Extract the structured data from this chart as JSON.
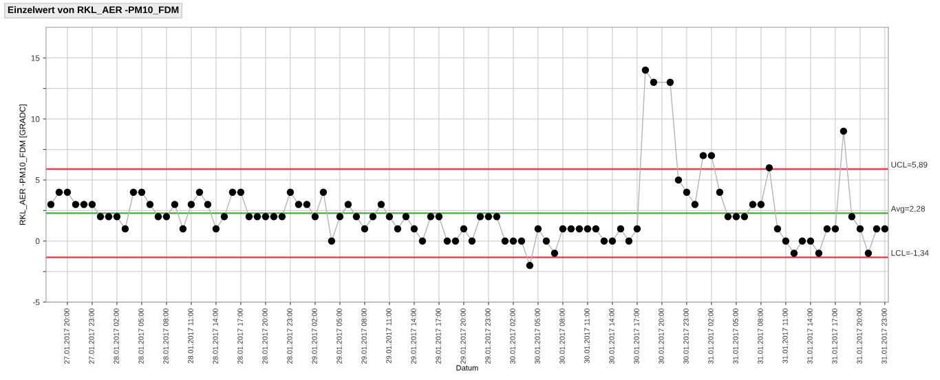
{
  "chart_data": {
    "type": "line",
    "title": "Einzelwert von RKL_AER -PM10_FDM",
    "xlabel": "Datum",
    "ylabel": "RKL_AER -PM10_FDM [GRADC]",
    "series": [
      {
        "color": "#000000",
        "x": [
          "2017-01-27T18:00",
          "2017-01-27T19:00",
          "2017-01-27T20:00",
          "2017-01-27T21:00",
          "2017-01-27T22:00",
          "2017-01-27T23:00",
          "2017-01-28T00:00",
          "2017-01-28T01:00",
          "2017-01-28T02:00",
          "2017-01-28T03:00",
          "2017-01-28T04:00",
          "2017-01-28T05:00",
          "2017-01-28T06:00",
          "2017-01-28T07:00",
          "2017-01-28T08:00",
          "2017-01-28T09:00",
          "2017-01-28T10:00",
          "2017-01-28T11:00",
          "2017-01-28T12:00",
          "2017-01-28T13:00",
          "2017-01-28T14:00",
          "2017-01-28T15:00",
          "2017-01-28T16:00",
          "2017-01-28T17:00",
          "2017-01-28T18:00",
          "2017-01-28T19:00",
          "2017-01-28T20:00",
          "2017-01-28T21:00",
          "2017-01-28T22:00",
          "2017-01-28T23:00",
          "2017-01-29T00:00",
          "2017-01-29T01:00",
          "2017-01-29T02:00",
          "2017-01-29T03:00",
          "2017-01-29T04:00",
          "2017-01-29T05:00",
          "2017-01-29T06:00",
          "2017-01-29T07:00",
          "2017-01-29T08:00",
          "2017-01-29T09:00",
          "2017-01-29T10:00",
          "2017-01-29T11:00",
          "2017-01-29T12:00",
          "2017-01-29T13:00",
          "2017-01-29T14:00",
          "2017-01-29T15:00",
          "2017-01-29T16:00",
          "2017-01-29T17:00",
          "2017-01-29T18:00",
          "2017-01-29T19:00",
          "2017-01-29T20:00",
          "2017-01-29T21:00",
          "2017-01-29T22:00",
          "2017-01-29T23:00",
          "2017-01-30T00:00",
          "2017-01-30T01:00",
          "2017-01-30T02:00",
          "2017-01-30T03:00",
          "2017-01-30T04:00",
          "2017-01-30T05:00",
          "2017-01-30T06:00",
          "2017-01-30T07:00",
          "2017-01-30T08:00",
          "2017-01-30T09:00",
          "2017-01-30T10:00",
          "2017-01-30T11:00",
          "2017-01-30T12:00",
          "2017-01-30T13:00",
          "2017-01-30T14:00",
          "2017-01-30T15:00",
          "2017-01-30T16:00",
          "2017-01-30T17:00",
          "2017-01-30T18:00",
          "2017-01-30T19:00",
          "2017-01-30T21:00",
          "2017-01-30T22:00",
          "2017-01-30T23:00",
          "2017-01-31T00:00",
          "2017-01-31T01:00",
          "2017-01-31T02:00",
          "2017-01-31T03:00",
          "2017-01-31T04:00",
          "2017-01-31T05:00",
          "2017-01-31T06:00",
          "2017-01-31T07:00",
          "2017-01-31T08:00",
          "2017-01-31T09:00",
          "2017-01-31T10:00",
          "2017-01-31T11:00",
          "2017-01-31T12:00",
          "2017-01-31T13:00",
          "2017-01-31T14:00",
          "2017-01-31T15:00",
          "2017-01-31T16:00",
          "2017-01-31T17:00",
          "2017-01-31T18:00",
          "2017-01-31T19:00",
          "2017-01-31T20:00",
          "2017-01-31T21:00",
          "2017-01-31T22:00",
          "2017-01-31T23:00"
        ],
        "values": [
          3,
          4,
          4,
          3,
          3,
          3,
          2,
          2,
          2,
          1,
          4,
          4,
          3,
          2,
          2,
          3,
          1,
          3,
          4,
          3,
          1,
          2,
          4,
          4,
          2,
          2,
          2,
          2,
          2,
          4,
          3,
          3,
          2,
          4,
          0,
          2,
          3,
          2,
          1,
          2,
          3,
          2,
          1,
          2,
          1,
          0,
          2,
          2,
          0,
          0,
          1,
          0,
          2,
          2,
          2,
          0,
          0,
          0,
          -2,
          1,
          0,
          -1,
          1,
          1,
          1,
          1,
          1,
          0,
          0,
          1,
          0,
          1,
          14,
          13,
          13,
          5,
          4,
          3,
          7,
          7,
          4,
          2,
          2,
          2,
          3,
          3,
          6,
          1,
          0,
          -1,
          0,
          0,
          -1,
          1,
          1,
          9,
          2,
          1,
          -1,
          1,
          1
        ]
      }
    ],
    "xlim": [
      "2017-01-27T17:25",
      "2017-01-31T23:25"
    ],
    "xticks": [
      {
        "value": "2017-01-27T20:00",
        "label": "27.01.2017 20:00"
      },
      {
        "value": "2017-01-27T23:00",
        "label": "27.01.2017 23:00"
      },
      {
        "value": "2017-01-28T02:00",
        "label": "28.01.2017 02:00"
      },
      {
        "value": "2017-01-28T05:00",
        "label": "28.01.2017 05:00"
      },
      {
        "value": "2017-01-28T08:00",
        "label": "28.01.2017 08:00"
      },
      {
        "value": "2017-01-28T11:00",
        "label": "28.01.2017 11:00"
      },
      {
        "value": "2017-01-28T14:00",
        "label": "28.01.2017 14:00"
      },
      {
        "value": "2017-01-28T17:00",
        "label": "28.01.2017 17:00"
      },
      {
        "value": "2017-01-28T20:00",
        "label": "28.01.2017 20:00"
      },
      {
        "value": "2017-01-28T23:00",
        "label": "28.01.2017 23:00"
      },
      {
        "value": "2017-01-29T02:00",
        "label": "29.01.2017 02:00"
      },
      {
        "value": "2017-01-29T05:00",
        "label": "29.01.2017 05:00"
      },
      {
        "value": "2017-01-29T08:00",
        "label": "29.01.2017 08:00"
      },
      {
        "value": "2017-01-29T11:00",
        "label": "29.01.2017 11:00"
      },
      {
        "value": "2017-01-29T14:00",
        "label": "29.01.2017 14:00"
      },
      {
        "value": "2017-01-29T17:00",
        "label": "29.01.2017 17:00"
      },
      {
        "value": "2017-01-29T20:00",
        "label": "29.01.2017 20:00"
      },
      {
        "value": "2017-01-29T23:00",
        "label": "29.01.2017 23:00"
      },
      {
        "value": "2017-01-30T02:00",
        "label": "30.01.2017 02:00"
      },
      {
        "value": "2017-01-30T05:00",
        "label": "30.01.2017 05:00"
      },
      {
        "value": "2017-01-30T08:00",
        "label": "30.01.2017 08:00"
      },
      {
        "value": "2017-01-30T11:00",
        "label": "30.01.2017 11:00"
      },
      {
        "value": "2017-01-30T14:00",
        "label": "30.01.2017 14:00"
      },
      {
        "value": "2017-01-30T17:00",
        "label": "30.01.2017 17:00"
      },
      {
        "value": "2017-01-30T20:00",
        "label": "30.01.2017 20:00"
      },
      {
        "value": "2017-01-30T23:00",
        "label": "30.01.2017 23:00"
      },
      {
        "value": "2017-01-31T02:00",
        "label": "31.01.2017 02:00"
      },
      {
        "value": "2017-01-31T05:00",
        "label": "31.01.2017 05:00"
      },
      {
        "value": "2017-01-31T08:00",
        "label": "31.01.2017 08:00"
      },
      {
        "value": "2017-01-31T11:00",
        "label": "31.01.2017 11:00"
      },
      {
        "value": "2017-01-31T14:00",
        "label": "31.01.2017 14:00"
      },
      {
        "value": "2017-01-31T17:00",
        "label": "31.01.2017 17:00"
      },
      {
        "value": "2017-01-31T20:00",
        "label": "31.01.2017 20:00"
      },
      {
        "value": "2017-01-31T23:00",
        "label": "31.01.2017 23:00"
      }
    ],
    "ylim": [
      -5,
      17.5
    ],
    "yticks": [
      -5,
      {
        "value": -2.5,
        "label": null
      },
      0,
      {
        "value": 2.5,
        "label": null
      },
      5,
      {
        "value": 7.5,
        "label": null
      },
      10,
      {
        "value": 12.5,
        "label": null
      },
      15
    ],
    "ref_lines": [
      {
        "axis": "y",
        "value": 5.89,
        "label": "UCL=5,89",
        "color": "#f0404f"
      },
      {
        "axis": "y",
        "value": 2.28,
        "label": "Avg=2,28",
        "color": "#4cb84c"
      },
      {
        "axis": "y",
        "value": -1.34,
        "label": "LCL=-1,34",
        "color": "#f0404f"
      }
    ],
    "grid": true,
    "marker": "circle",
    "line_style": "solid",
    "legend": false
  }
}
